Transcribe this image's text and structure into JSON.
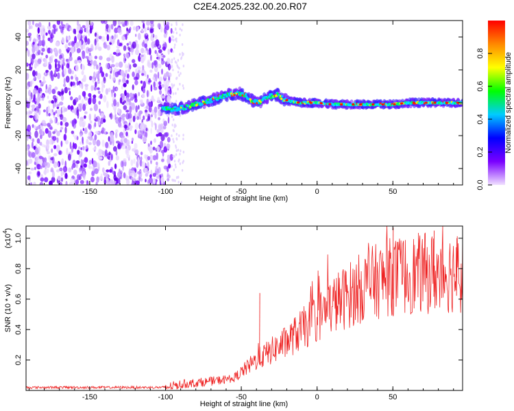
{
  "title": "C2E4.2025.232.00.20.R07",
  "chart_data": [
    {
      "type": "heatmap",
      "xlabel": "Height of straight line (km)",
      "ylabel": "Frequency (Hz)",
      "xlim": [
        -192,
        96
      ],
      "ylim": [
        -50,
        50
      ],
      "x_ticks": [
        -150,
        -100,
        -50,
        0,
        50
      ],
      "y_ticks": [
        -40,
        -20,
        0,
        20,
        40
      ],
      "noise_region_x": [
        -192,
        -96
      ],
      "signal_trace": {
        "x": [
          -102,
          -95,
          -88,
          -80,
          -72,
          -65,
          -58,
          -52,
          -47,
          -42,
          -38,
          -34,
          -30,
          -26,
          -22,
          -18,
          -12,
          -5,
          0,
          10,
          20,
          30,
          40,
          50,
          60,
          70,
          80,
          90,
          96
        ],
        "y": [
          -3,
          -4,
          -3,
          -1,
          1,
          3,
          5,
          6,
          4,
          1,
          0,
          3,
          4,
          5,
          2,
          1,
          0,
          0,
          0,
          -1,
          -1,
          -1,
          -1,
          -1,
          0,
          0,
          0,
          0,
          0
        ]
      },
      "colorbar": {
        "label": "Normalized spectral amplitude",
        "range": [
          0.0,
          1.0
        ],
        "ticks": [
          "0.0",
          "0.2",
          "0.4",
          "0.6",
          "0.8"
        ],
        "colors": [
          "#f0e0ff",
          "#7a00ff",
          "#0000ff",
          "#00ccff",
          "#00ff00",
          "#ffff00",
          "#ff8800",
          "#ff0000"
        ]
      }
    },
    {
      "type": "line",
      "xlabel": "Height of straight line (km)",
      "ylabel": "SNR (10 * v/v)",
      "y_scale_label": "(x10",
      "y_scale_exp": "4",
      "y_scale_close": ")",
      "xlim": [
        -192,
        96
      ],
      "ylim": [
        0,
        1.08
      ],
      "x_ticks": [
        -150,
        -100,
        -50,
        0,
        50
      ],
      "y_ticks": [
        "0.2",
        "0.4",
        "0.6",
        "0.8",
        "1.0"
      ],
      "series": [
        {
          "name": "SNR",
          "color": "#ee2222",
          "trend_x": [
            -192,
            -100,
            -90,
            -70,
            -55,
            -50,
            -40,
            -30,
            -20,
            -10,
            0,
            10,
            20,
            30,
            40,
            50,
            60,
            70,
            80,
            96
          ],
          "trend_y": [
            0.02,
            0.02,
            0.04,
            0.06,
            0.08,
            0.12,
            0.2,
            0.26,
            0.32,
            0.4,
            0.48,
            0.56,
            0.62,
            0.68,
            0.72,
            0.75,
            0.76,
            0.77,
            0.77,
            0.78
          ],
          "peaks": [
            {
              "x": -38,
              "y": 0.64
            },
            {
              "x": 50,
              "y": 1.07
            },
            {
              "x": 77,
              "y": 1.05
            },
            {
              "x": 92,
              "y": 1.0
            }
          ]
        }
      ]
    }
  ]
}
